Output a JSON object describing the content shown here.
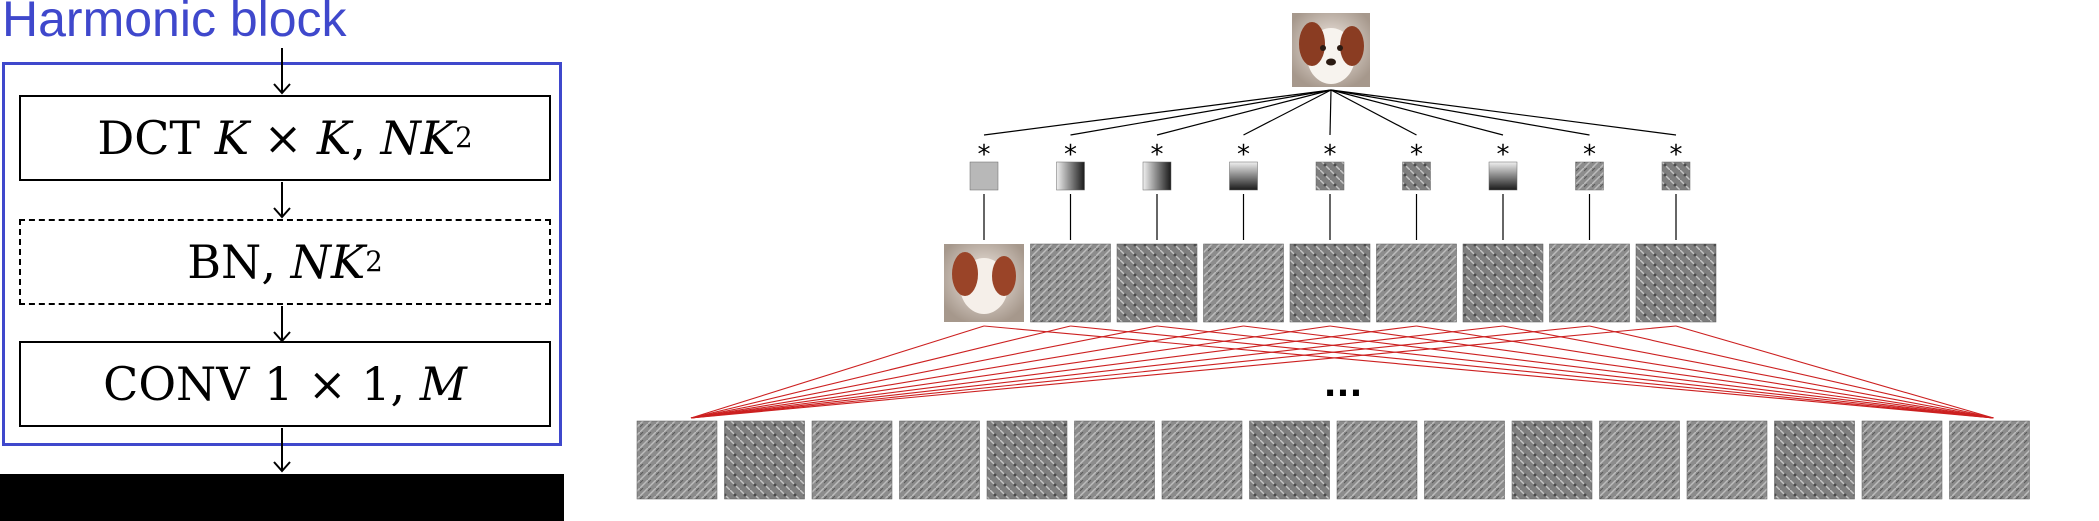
{
  "title": "Harmonic block",
  "blocks": {
    "dct": {
      "name": "DCT",
      "k1": "K",
      "times": "×",
      "k2": "K",
      "comma": ",",
      "nk": "NK",
      "exp": "2"
    },
    "bn": {
      "name": "BN",
      "comma": ",",
      "nk": "NK",
      "exp": "2"
    },
    "conv": {
      "name": "CONV",
      "size": "1 × 1",
      "comma": ",",
      "m": "M"
    }
  },
  "diagram": {
    "conv_symbol": "*",
    "ellipsis": "...",
    "filter_count": 9,
    "output_count": 16
  },
  "colors": {
    "title": "#3f48cc",
    "frame": "#3f48cc",
    "fan_lines": "#cc2020"
  }
}
